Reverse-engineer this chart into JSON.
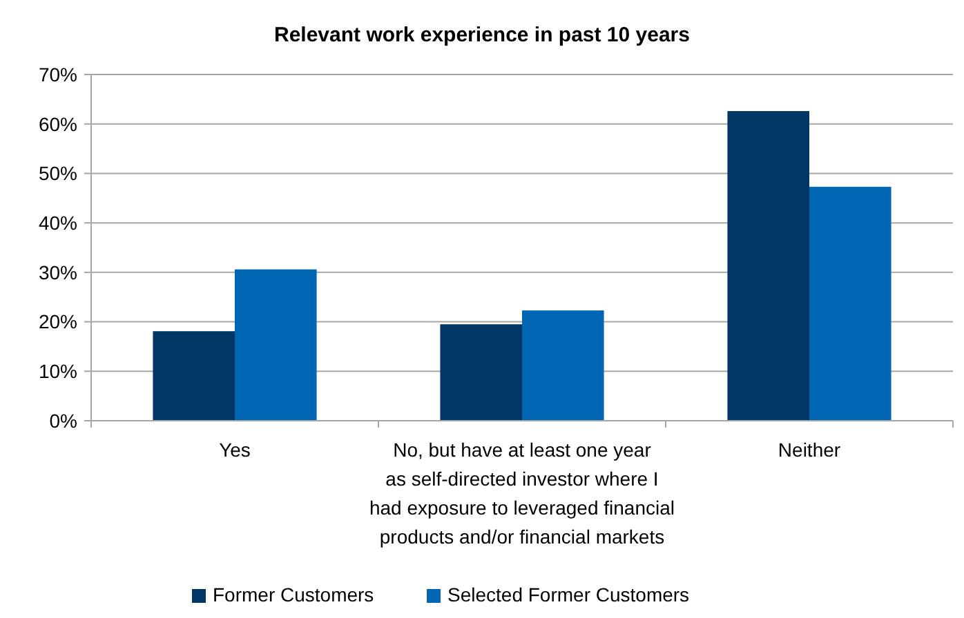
{
  "chart_data": {
    "type": "bar",
    "title": "Relevant work experience in past 10 years",
    "categories": [
      "Yes",
      "No, but have at least one year\nas self-directed investor where I\nhad exposure to leveraged financial\nproducts and/or financial markets",
      "Neither"
    ],
    "series": [
      {
        "name": "Former Customers",
        "color": "#003764",
        "values": [
          18.1,
          19.5,
          62.6
        ]
      },
      {
        "name": "Selected Former Customers",
        "color": "#0066b3",
        "values": [
          30.6,
          22.3,
          47.3
        ]
      }
    ],
    "ylim": [
      0,
      70
    ],
    "yticks": [
      {
        "value": 0,
        "label": "0%"
      },
      {
        "value": 10,
        "label": "10%"
      },
      {
        "value": 20,
        "label": "20%"
      },
      {
        "value": 30,
        "label": "30%"
      },
      {
        "value": 40,
        "label": "40%"
      },
      {
        "value": 50,
        "label": "50%"
      },
      {
        "value": 60,
        "label": "60%"
      },
      {
        "value": 70,
        "label": "70%"
      }
    ],
    "grid": "y",
    "legend": "bottom"
  }
}
